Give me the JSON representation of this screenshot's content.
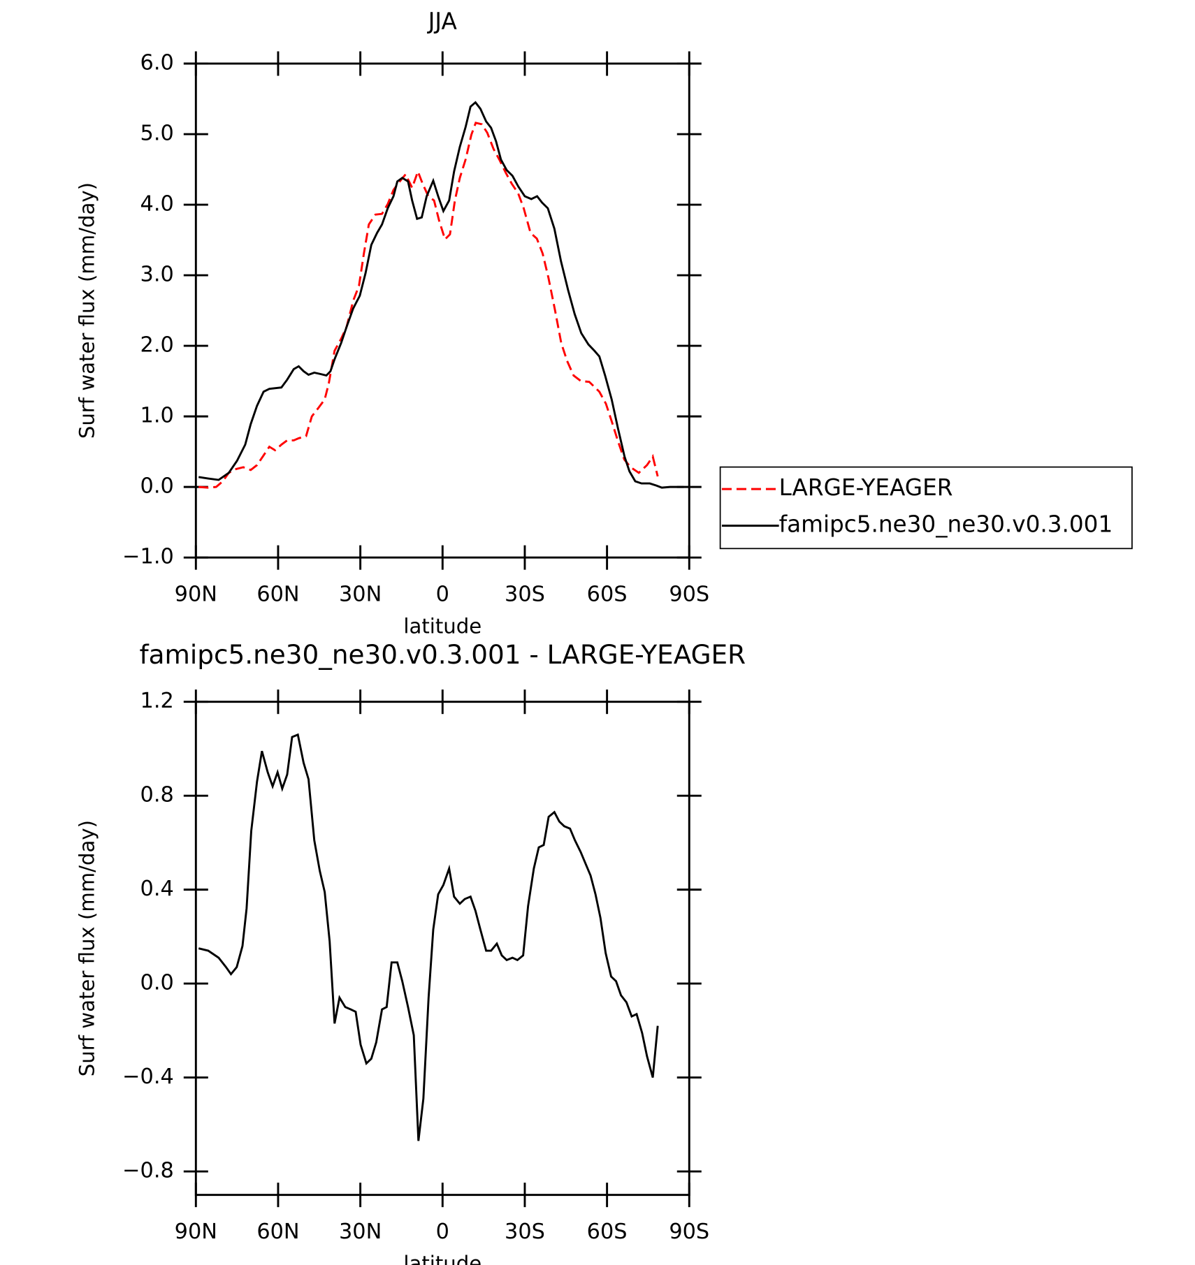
{
  "chart_data": [
    {
      "type": "line",
      "title": "JJA",
      "xlabel": "latitude",
      "ylabel": "Surf water flux (mm/day)",
      "xlim": [
        90,
        -90
      ],
      "xticks": [
        {
          "value": 90,
          "label": "90N"
        },
        {
          "value": 60,
          "label": "60N"
        },
        {
          "value": 30,
          "label": "30N"
        },
        0,
        {
          "value": -30,
          "label": "30S"
        },
        {
          "value": -60,
          "label": "60S"
        },
        {
          "value": -90,
          "label": "90S"
        }
      ],
      "ylim": [
        -1,
        6
      ],
      "yticks": [
        {
          "value": 6,
          "label": "6.0"
        },
        {
          "value": 5,
          "label": "5.0"
        },
        {
          "value": 4,
          "label": "4.0"
        },
        {
          "value": 3,
          "label": "3.0"
        },
        {
          "value": 2,
          "label": "2.0"
        },
        {
          "value": 1,
          "label": "1.0"
        },
        {
          "value": 0,
          "label": "0.0"
        },
        {
          "value": -1,
          "label": "−1.0"
        }
      ],
      "legend": "right",
      "series": [
        {
          "name": "LARGE-YEAGER",
          "color": "#ff0000",
          "line_style": "dashed",
          "x": [
            89,
            85.5,
            82.6,
            80.2,
            78,
            75.7,
            72.7,
            70,
            67.7,
            65.6,
            63.2,
            61.1,
            58.8,
            56.7,
            54.3,
            52.5,
            49.8,
            47.7,
            45.3,
            43,
            41.5,
            39.4,
            37,
            35,
            32.6,
            30.5,
            28.7,
            26.9,
            24.5,
            22.1,
            20,
            17.9,
            15.6,
            13.5,
            11.1,
            9,
            7.3,
            5.2,
            3.1,
            1.3,
            -0.9,
            -2.7,
            -4.5,
            -6.3,
            -8.4,
            -10.5,
            -12.1,
            -14.3,
            -16.3,
            -18.6,
            -20.7,
            -23.1,
            -25.2,
            -27.6,
            -29.6,
            -32.1,
            -34.4,
            -36.5,
            -38.6,
            -41,
            -43.3,
            -45.4,
            -47.8,
            -50.5,
            -53.5,
            -57.2,
            -59.6,
            -61.8,
            -63.9,
            -66.3,
            -68.6,
            -71.6,
            -74.6,
            -76.7,
            -78.5
          ],
          "values": [
            0,
            -0.01,
            0,
            0.08,
            0.2,
            0.25,
            0.28,
            0.24,
            0.31,
            0.43,
            0.57,
            0.52,
            0.6,
            0.66,
            0.66,
            0.69,
            0.72,
            1.0,
            1.12,
            1.24,
            1.47,
            1.93,
            2.1,
            2.27,
            2.64,
            2.85,
            3.31,
            3.72,
            3.86,
            3.87,
            4.01,
            4.21,
            4.33,
            4.43,
            4.24,
            4.47,
            4.3,
            4.12,
            4.06,
            3.78,
            3.51,
            3.58,
            4.06,
            4.38,
            4.64,
            4.99,
            5.16,
            5.14,
            5.02,
            4.79,
            4.64,
            4.45,
            4.3,
            4.16,
            3.95,
            3.6,
            3.52,
            3.31,
            2.97,
            2.51,
            2.04,
            1.79,
            1.58,
            1.5,
            1.49,
            1.35,
            1.18,
            0.92,
            0.66,
            0.39,
            0.28,
            0.2,
            0.31,
            0.43,
            0.15
          ]
        },
        {
          "name": "famipc5.ne30_ne30.v0.3.001",
          "color": "#000000",
          "line_style": "solid",
          "x": [
            89,
            85.5,
            81.7,
            78,
            75,
            72,
            70,
            67.7,
            65.3,
            63.2,
            58.8,
            56.7,
            54.3,
            52.5,
            50.7,
            48.9,
            46.8,
            44.5,
            42.4,
            40.9,
            39.4,
            37,
            35,
            32.6,
            30.2,
            28.1,
            26,
            23.9,
            22.1,
            20,
            17.9,
            16.5,
            14.7,
            12.6,
            11.1,
            9.3,
            7.6,
            5.8,
            3.4,
            1.6,
            -0.3,
            -2.4,
            -4.2,
            -6.3,
            -8.4,
            -10.2,
            -12,
            -13.8,
            -15.9,
            -17.7,
            -19.5,
            -21.3,
            -23.4,
            -25.5,
            -27.6,
            -30,
            -32.4,
            -34.5,
            -36.3,
            -38.4,
            -40.8,
            -43.2,
            -45.8,
            -48.2,
            -50.6,
            -53.2,
            -55.4,
            -57.2,
            -59.3,
            -61.7,
            -64,
            -66.4,
            -68.2,
            -70.3,
            -72.6,
            -75.6,
            -78,
            -80,
            -83,
            -88
          ],
          "values": [
            0.14,
            0.12,
            0.1,
            0.2,
            0.37,
            0.6,
            0.89,
            1.15,
            1.35,
            1.39,
            1.41,
            1.52,
            1.67,
            1.71,
            1.64,
            1.59,
            1.62,
            1.6,
            1.58,
            1.64,
            1.81,
            2.04,
            2.27,
            2.53,
            2.71,
            3.03,
            3.43,
            3.6,
            3.72,
            3.95,
            4.12,
            4.33,
            4.38,
            4.33,
            4.06,
            3.8,
            3.82,
            4.12,
            4.34,
            4.12,
            3.91,
            4.06,
            4.47,
            4.82,
            5.1,
            5.39,
            5.45,
            5.36,
            5.18,
            5.09,
            4.9,
            4.64,
            4.49,
            4.41,
            4.26,
            4.12,
            4.08,
            4.12,
            4.03,
            3.95,
            3.66,
            3.2,
            2.79,
            2.45,
            2.18,
            2.02,
            1.93,
            1.85,
            1.58,
            1.24,
            0.83,
            0.43,
            0.22,
            0.08,
            0.05,
            0.05,
            0.02,
            -0.01,
            0,
            0
          ]
        }
      ]
    },
    {
      "type": "line",
      "title": "famipc5.ne30_ne30.v0.3.001 - LARGE-YEAGER",
      "xlabel": "latitude",
      "ylabel": "Surf water flux (mm/day)",
      "xlim": [
        90,
        -90
      ],
      "xticks": [
        {
          "value": 90,
          "label": "90N"
        },
        {
          "value": 60,
          "label": "60N"
        },
        {
          "value": 30,
          "label": "30N"
        },
        0,
        {
          "value": -30,
          "label": "30S"
        },
        {
          "value": -60,
          "label": "60S"
        },
        {
          "value": -90,
          "label": "90S"
        }
      ],
      "ylim": [
        -0.9,
        1.2
      ],
      "yticks": [
        1.2,
        0.8,
        0.4,
        {
          "value": 0,
          "label": "0.0"
        },
        {
          "value": -0.4,
          "label": "−0.4"
        },
        {
          "value": -0.8,
          "label": "−0.8"
        }
      ],
      "series": [
        {
          "color": "#000000",
          "line_style": "solid",
          "x": [
            89,
            85.5,
            81.7,
            79,
            77.2,
            75.1,
            73,
            71.5,
            69.8,
            67.7,
            65.9,
            63.8,
            62,
            60.2,
            58.5,
            56.7,
            54.9,
            52.8,
            50.7,
            48.9,
            46.8,
            44.8,
            43,
            41.2,
            39.4,
            37.6,
            35.5,
            33.5,
            31.7,
            29.9,
            27.8,
            26,
            24.2,
            22.1,
            20.4,
            18.6,
            16.5,
            14.7,
            12.6,
            10.5,
            8.8,
            7,
            5.1,
            3.4,
            1.6,
            -0.3,
            -2.4,
            -4.2,
            -6.3,
            -8.1,
            -10.2,
            -12,
            -13.8,
            -15.9,
            -17.7,
            -19.8,
            -21.6,
            -23.4,
            -25.5,
            -27.3,
            -29.4,
            -31.2,
            -33.3,
            -35.1,
            -36.9,
            -38.7,
            -40.8,
            -42.6,
            -44.4,
            -46.5,
            -48.3,
            -50.4,
            -52.2,
            -54,
            -55.8,
            -57.6,
            -59.5,
            -61.5,
            -63.3,
            -65.1,
            -67.1,
            -69,
            -70.8,
            -72.8,
            -74.6,
            -76.7,
            -78.5
          ],
          "values": [
            0.15,
            0.14,
            0.11,
            0.07,
            0.04,
            0.07,
            0.16,
            0.32,
            0.65,
            0.86,
            0.99,
            0.9,
            0.84,
            0.9,
            0.83,
            0.89,
            1.05,
            1.06,
            0.94,
            0.87,
            0.61,
            0.48,
            0.39,
            0.18,
            -0.17,
            -0.06,
            -0.1,
            -0.11,
            -0.12,
            -0.26,
            -0.34,
            -0.32,
            -0.25,
            -0.11,
            -0.1,
            0.09,
            0.09,
            0.01,
            -0.1,
            -0.22,
            -0.67,
            -0.49,
            -0.06,
            0.23,
            0.38,
            0.42,
            0.49,
            0.37,
            0.34,
            0.36,
            0.37,
            0.31,
            0.23,
            0.14,
            0.14,
            0.17,
            0.12,
            0.1,
            0.11,
            0.1,
            0.12,
            0.33,
            0.49,
            0.58,
            0.59,
            0.71,
            0.73,
            0.69,
            0.67,
            0.66,
            0.61,
            0.56,
            0.51,
            0.46,
            0.38,
            0.28,
            0.13,
            0.03,
            0.01,
            -0.05,
            -0.08,
            -0.14,
            -0.13,
            -0.21,
            -0.31,
            -0.4,
            -0.18
          ]
        }
      ]
    }
  ]
}
